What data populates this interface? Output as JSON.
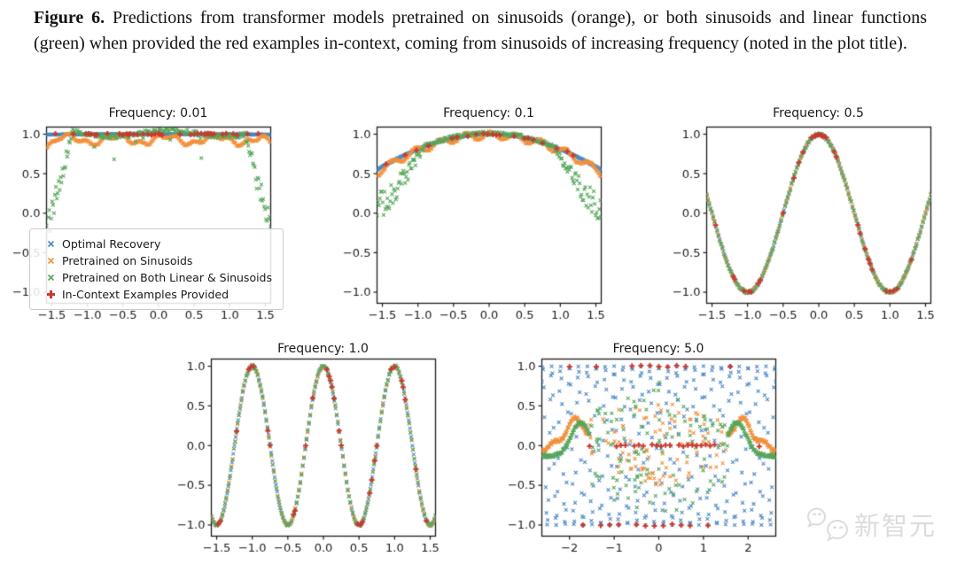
{
  "caption": {
    "label": "Figure 6.",
    "text": "Predictions from transformer models pretrained on sinusoids (orange), or both sinusoids and linear functions (green) when provided the red examples in-context, coming from sinusoids of increasing frequency (noted in the plot title)."
  },
  "legend": {
    "items": [
      {
        "label": "Optimal Recovery",
        "marker": "x",
        "color": "#4a88c4"
      },
      {
        "label": "Pretrained on Sinusoids",
        "marker": "x",
        "color": "#f2903a"
      },
      {
        "label": "Pretrained on Both Linear & Sinusoids",
        "marker": "x",
        "color": "#55a65a"
      },
      {
        "label": "In-Context Examples Provided",
        "marker": "plus",
        "color": "#c9392f"
      }
    ]
  },
  "watermark": {
    "text": "新智元",
    "color": "#dcdcdc"
  },
  "chart_data": [
    {
      "type": "scatter",
      "title": "Frequency: 0.01",
      "frequency": 0.01,
      "xlim": [
        -1.575,
        1.575
      ],
      "ylim": [
        -1.14,
        1.09
      ],
      "xticks": [
        {
          "v": -1.5,
          "l": "−1.5"
        },
        {
          "v": -1.0,
          "l": "−1.0"
        },
        {
          "v": -0.5,
          "l": "−0.5"
        },
        {
          "v": 0.0,
          "l": "0.0"
        },
        {
          "v": 0.5,
          "l": "0.5"
        },
        {
          "v": 1.0,
          "l": "1.0"
        },
        {
          "v": 1.5,
          "l": "1.5"
        }
      ],
      "yticks": [
        {
          "v": 1.0,
          "l": "1.0"
        },
        {
          "v": 0.5,
          "l": "0.5"
        },
        {
          "v": 0.0,
          "l": "0.0"
        },
        {
          "v": -0.5,
          "l": "−0.5"
        },
        {
          "v": -1.0,
          "l": "−1.0"
        }
      ],
      "legend": true,
      "series": [
        {
          "name": "Optimal Recovery",
          "marker": "x",
          "color": "#4a88c4",
          "gen": "cos",
          "n": 330,
          "jitter": 0.004
        },
        {
          "name": "Pretrained on Sinusoids",
          "marker": "x",
          "color": "#f2903a",
          "gen": "orange1",
          "n": 300
        },
        {
          "name": "Pretrained on Both Linear & Sinusoids",
          "marker": "x",
          "color": "#55a65a",
          "gen": "green1",
          "n": 240
        },
        {
          "name": "In-Context Examples Provided",
          "marker": "plus",
          "color": "#c9392f",
          "gen": "red",
          "x": [
            -1.45,
            -1.2,
            -1.02,
            -0.98,
            -0.95,
            -0.9,
            -0.87,
            -0.72,
            -0.55,
            -0.5,
            -0.45,
            -0.42,
            -0.4,
            -0.35,
            -0.3,
            -0.22,
            -0.15,
            -0.1,
            -0.05,
            0.0,
            0.02,
            0.05,
            0.3,
            0.45,
            0.5,
            0.55,
            0.6,
            0.65,
            0.68,
            0.7,
            0.73,
            0.75,
            0.78,
            0.9,
            0.95,
            1.05,
            1.1,
            1.25,
            1.4
          ]
        }
      ]
    },
    {
      "type": "scatter",
      "title": "Frequency: 0.1",
      "frequency": 0.1,
      "xlim": [
        -1.575,
        1.575
      ],
      "ylim": [
        -1.14,
        1.09
      ],
      "xticks": [
        {
          "v": -1.5,
          "l": "−1.5"
        },
        {
          "v": -1.0,
          "l": "−1.0"
        },
        {
          "v": -0.5,
          "l": "−0.5"
        },
        {
          "v": 0.0,
          "l": "0.0"
        },
        {
          "v": 0.5,
          "l": "0.5"
        },
        {
          "v": 1.0,
          "l": "1.0"
        },
        {
          "v": 1.5,
          "l": "1.5"
        }
      ],
      "yticks": [
        {
          "v": 1.0,
          "l": "1.0"
        },
        {
          "v": 0.5,
          "l": "0.5"
        },
        {
          "v": 0.0,
          "l": "0.0"
        },
        {
          "v": -0.5,
          "l": "−0.5"
        },
        {
          "v": -1.0,
          "l": "−1.0"
        }
      ],
      "legend": false,
      "series": [
        {
          "name": "Optimal Recovery",
          "marker": "x",
          "color": "#4a88c4",
          "gen": "cos",
          "n": 330,
          "jitter": 0.004
        },
        {
          "name": "Pretrained on Sinusoids",
          "marker": "x",
          "color": "#f2903a",
          "gen": "orange2",
          "n": 300
        },
        {
          "name": "Pretrained on Both Linear & Sinusoids",
          "marker": "x",
          "color": "#55a65a",
          "gen": "green2",
          "n": 240
        },
        {
          "name": "In-Context Examples Provided",
          "marker": "plus",
          "color": "#c9392f",
          "gen": "red",
          "x": [
            -1.45,
            -1.18,
            -1.02,
            -0.85,
            -0.52,
            -0.45,
            -0.3,
            -0.18,
            -0.08,
            -0.02,
            0.05,
            0.1,
            0.15,
            0.35,
            0.5,
            0.55,
            0.62,
            0.75,
            0.95,
            1.1,
            1.18
          ]
        }
      ]
    },
    {
      "type": "scatter",
      "title": "Frequency: 0.5",
      "frequency": 0.5,
      "xlim": [
        -1.575,
        1.575
      ],
      "ylim": [
        -1.14,
        1.09
      ],
      "xticks": [
        {
          "v": -1.5,
          "l": "−1.5"
        },
        {
          "v": -1.0,
          "l": "−1.0"
        },
        {
          "v": -0.5,
          "l": "−0.5"
        },
        {
          "v": 0.0,
          "l": "0.0"
        },
        {
          "v": 0.5,
          "l": "0.5"
        },
        {
          "v": 1.0,
          "l": "1.0"
        },
        {
          "v": 1.5,
          "l": "1.5"
        }
      ],
      "yticks": [
        {
          "v": 1.0,
          "l": "1.0"
        },
        {
          "v": 0.5,
          "l": "0.5"
        },
        {
          "v": 0.0,
          "l": "0.0"
        },
        {
          "v": -0.5,
          "l": "−0.5"
        },
        {
          "v": -1.0,
          "l": "−1.0"
        }
      ],
      "legend": false,
      "series": [
        {
          "name": "Optimal Recovery",
          "marker": "x",
          "color": "#4a88c4",
          "gen": "cos",
          "n": 175,
          "jitter": 0.008
        },
        {
          "name": "Pretrained on Sinusoids",
          "marker": "x",
          "color": "#f2903a",
          "gen": "cos",
          "n": 170,
          "jitter": 0.014
        },
        {
          "name": "Pretrained on Both Linear & Sinusoids",
          "marker": "x",
          "color": "#55a65a",
          "gen": "cos",
          "n": 170,
          "jitter": 0.02
        },
        {
          "name": "In-Context Examples Provided",
          "marker": "plus",
          "color": "#c9392f",
          "gen": "red",
          "x": [
            -1.45,
            -1.2,
            -1.18,
            -1.05,
            -0.98,
            -0.95,
            -0.85,
            -0.82,
            -0.5,
            -0.35,
            -0.28,
            -0.22,
            -0.1,
            -0.05,
            -0.02,
            0.0,
            0.03,
            0.05,
            0.08,
            0.1,
            0.22,
            0.25,
            0.55,
            0.58,
            0.65,
            0.7,
            0.72,
            0.75,
            0.95,
            1.0,
            1.05,
            1.1,
            1.3
          ]
        }
      ]
    },
    {
      "type": "scatter",
      "title": "Frequency: 1.0",
      "frequency": 1.0,
      "xlim": [
        -1.575,
        1.575
      ],
      "ylim": [
        -1.14,
        1.09
      ],
      "xticks": [
        {
          "v": -1.5,
          "l": "−1.5"
        },
        {
          "v": -1.0,
          "l": "−1.0"
        },
        {
          "v": -0.5,
          "l": "−0.5"
        },
        {
          "v": 0.0,
          "l": "0.0"
        },
        {
          "v": 0.5,
          "l": "0.5"
        },
        {
          "v": 1.0,
          "l": "1.0"
        },
        {
          "v": 1.5,
          "l": "1.5"
        }
      ],
      "yticks": [
        {
          "v": 1.0,
          "l": "1.0"
        },
        {
          "v": 0.5,
          "l": "0.5"
        },
        {
          "v": 0.0,
          "l": "0.0"
        },
        {
          "v": -0.5,
          "l": "−0.5"
        },
        {
          "v": -1.0,
          "l": "−1.0"
        }
      ],
      "legend": false,
      "series": [
        {
          "name": "Optimal Recovery",
          "marker": "x",
          "color": "#4a88c4",
          "gen": "cos",
          "n": 185,
          "jitter": 0.008
        },
        {
          "name": "Pretrained on Sinusoids",
          "marker": "x",
          "color": "#f2903a",
          "gen": "cos",
          "n": 180,
          "jitter": 0.013
        },
        {
          "name": "Pretrained on Both Linear & Sinusoids",
          "marker": "x",
          "color": "#55a65a",
          "gen": "cos",
          "n": 180,
          "jitter": 0.018
        },
        {
          "name": "In-Context Examples Provided",
          "marker": "plus",
          "color": "#c9392f",
          "gen": "red",
          "x": [
            -1.48,
            -1.45,
            -1.22,
            -1.05,
            -1.02,
            -0.98,
            -0.78,
            -0.75,
            -0.42,
            -0.4,
            -0.25,
            -0.15,
            0.05,
            0.08,
            0.1,
            0.12,
            0.15,
            0.22,
            0.25,
            0.48,
            0.52,
            0.55,
            0.65,
            0.68,
            0.72,
            0.75,
            0.95,
            1.0,
            1.1,
            1.12,
            1.15,
            1.3,
            1.45
          ]
        }
      ]
    },
    {
      "type": "scatter",
      "title": "Frequency: 5.0",
      "frequency": 5.0,
      "xlim": [
        -2.62,
        2.62
      ],
      "ylim": [
        -1.14,
        1.09
      ],
      "xticks": [
        {
          "v": -2,
          "l": "−2"
        },
        {
          "v": -1,
          "l": "−1"
        },
        {
          "v": 0,
          "l": "0"
        },
        {
          "v": 1,
          "l": "1"
        },
        {
          "v": 2,
          "l": "2"
        }
      ],
      "yticks": [
        {
          "v": 1.0,
          "l": "1.0"
        },
        {
          "v": 0.5,
          "l": "0.5"
        },
        {
          "v": 0.0,
          "l": "0.0"
        },
        {
          "v": -0.5,
          "l": "−0.5"
        },
        {
          "v": -1.0,
          "l": "−1.0"
        }
      ],
      "legend": false,
      "series": [
        {
          "name": "Optimal Recovery",
          "marker": "x",
          "color": "#4a88c4",
          "gen": "blue5",
          "n": 360
        },
        {
          "name": "Pretrained on Sinusoids",
          "marker": "x",
          "color": "#f2903a",
          "gen": "orange5"
        },
        {
          "name": "Pretrained on Both Linear & Sinusoids",
          "marker": "x",
          "color": "#55a65a",
          "gen": "green5"
        },
        {
          "name": "In-Context Examples Provided",
          "marker": "plus",
          "color": "#c9392f",
          "gen": "red",
          "x": [
            -2.0,
            -1.7,
            -1.55,
            -1.4,
            -1.3,
            -1.1,
            -0.95,
            -0.9,
            -0.85,
            -0.75,
            -0.6,
            -0.55,
            -0.5,
            -0.45,
            -0.4,
            -0.35,
            -0.3,
            -0.2,
            -0.15,
            -0.1,
            -0.05,
            0.0,
            0.05,
            0.1,
            0.15,
            0.2,
            0.25,
            0.3,
            0.4,
            0.45,
            0.5,
            0.55,
            0.6,
            0.65,
            0.7,
            0.75,
            0.85,
            0.95,
            1.05,
            1.1,
            1.15,
            1.25,
            1.6,
            2.25
          ]
        }
      ]
    }
  ]
}
